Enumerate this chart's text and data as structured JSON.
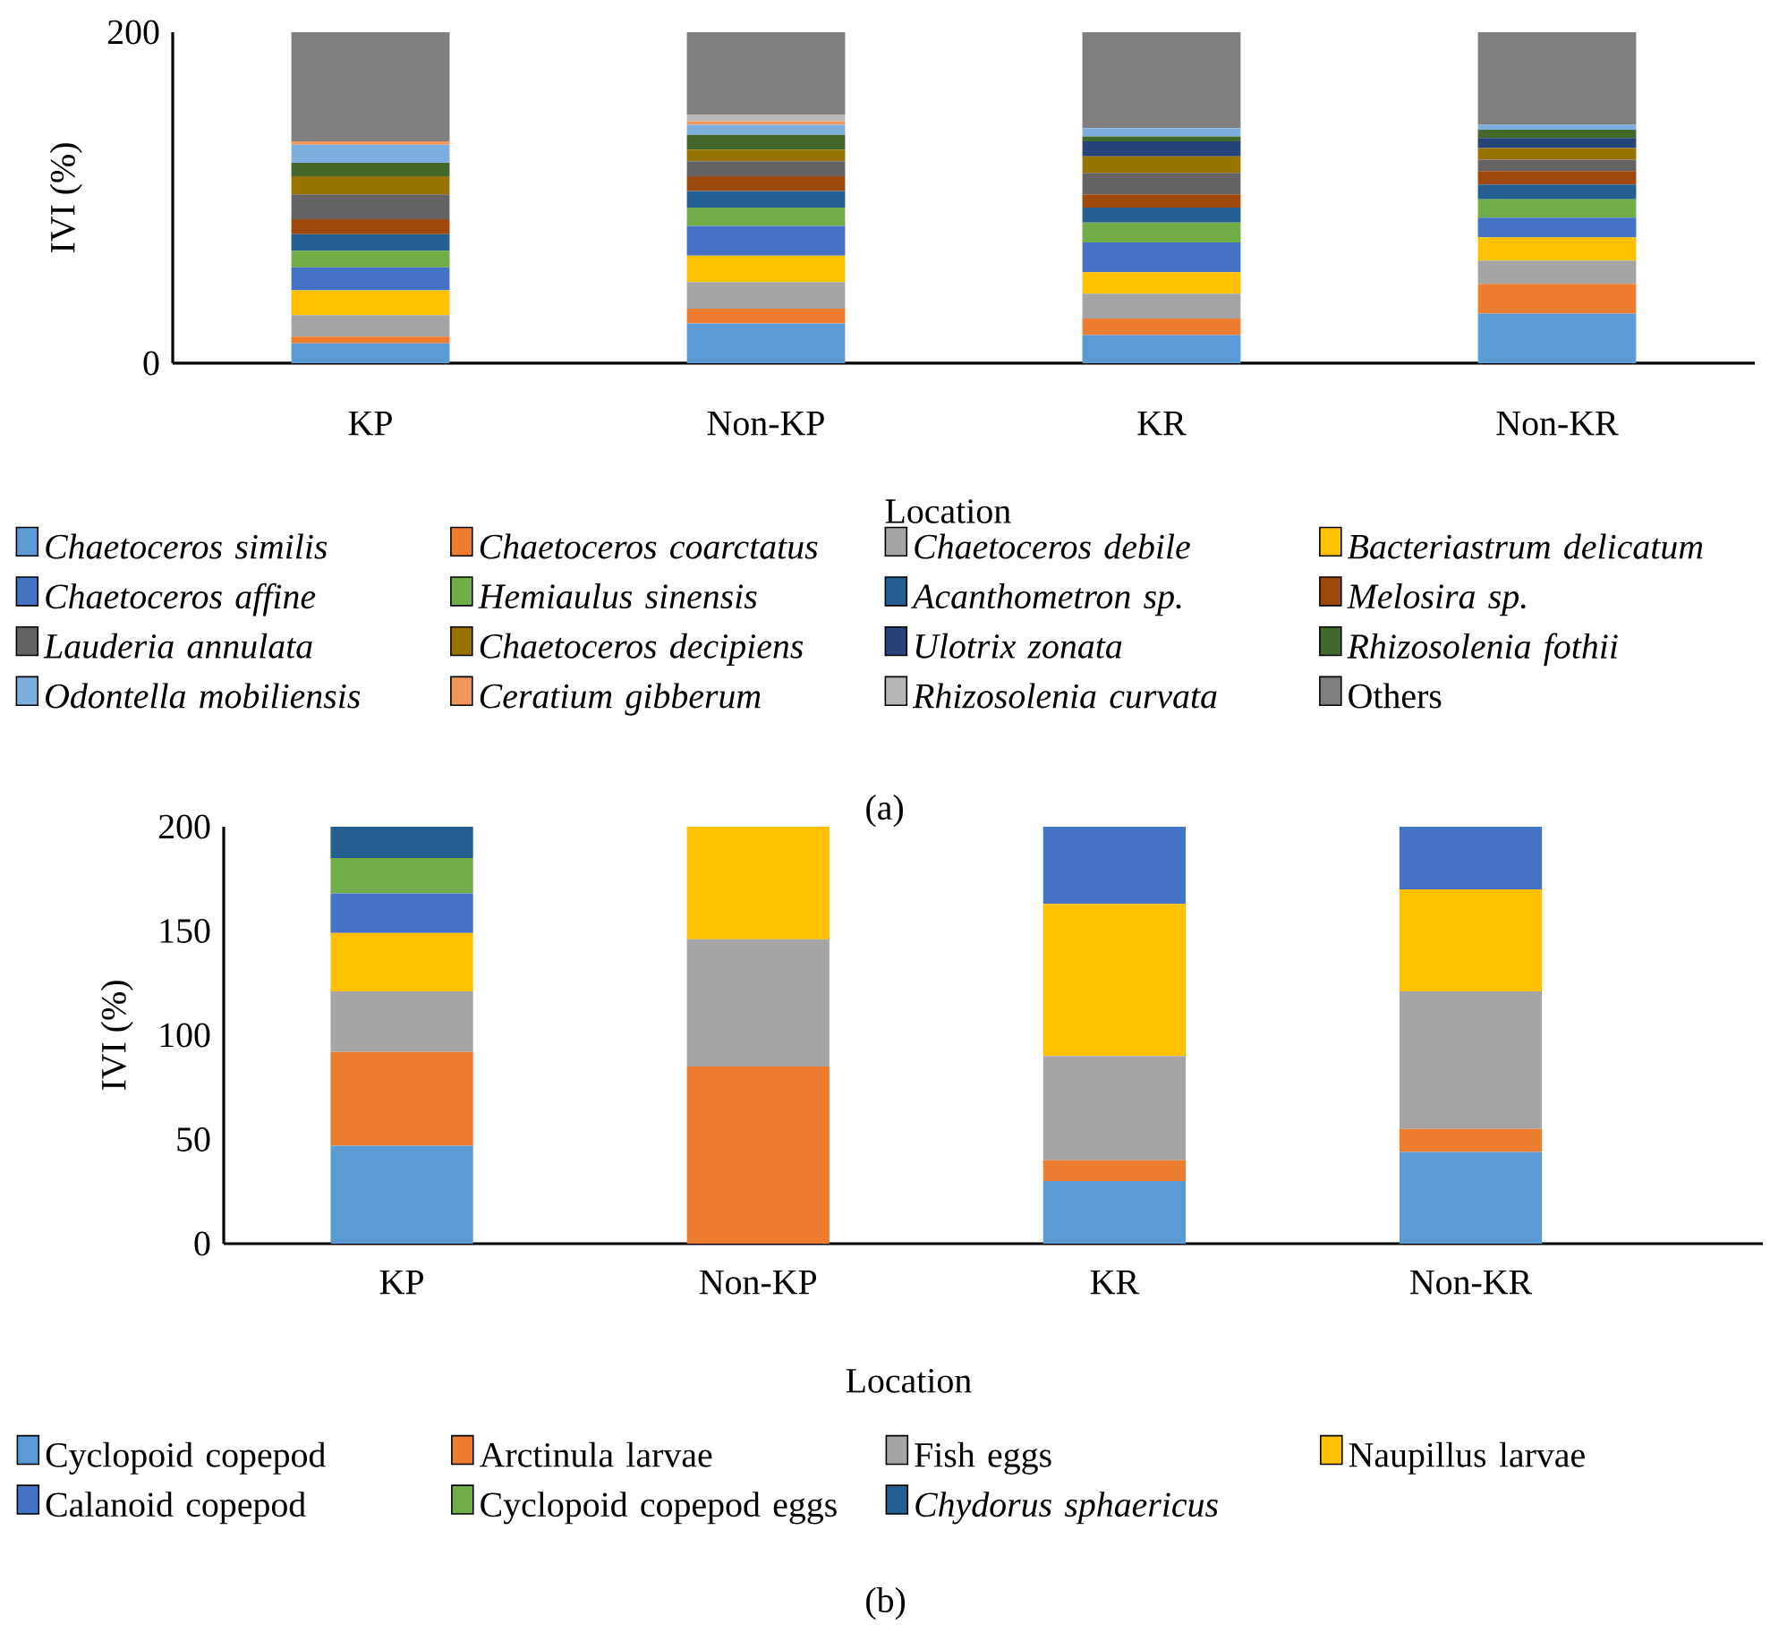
{
  "chart_data": [
    {
      "type": "bar",
      "stacked": true,
      "ylabel": "IVI (%)",
      "xlabel": "Location",
      "categories": [
        "KP",
        "Non-KP",
        "KR",
        "Non-KR"
      ],
      "ylim": [
        0,
        200
      ],
      "yticks": [
        0,
        200
      ],
      "legend": "bottom",
      "annotations": [
        "(a)"
      ],
      "series": [
        {
          "name": "*Chaetoceros similis*",
          "color": "#5b9bd5",
          "values": [
            12,
            24,
            17,
            30
          ]
        },
        {
          "name": "*Chaetoceros coarctatus*",
          "color": "#ed7d31",
          "values": [
            4,
            9,
            10,
            18
          ]
        },
        {
          "name": "*Chaetoceros debile*",
          "color": "#a5a5a5",
          "values": [
            13,
            16,
            15,
            14
          ]
        },
        {
          "name": "*Bacteriastrum delicatum*",
          "color": "#ffc000",
          "values": [
            15,
            16,
            13,
            14
          ]
        },
        {
          "name": "*Chaetoceros affine*",
          "color": "#4472c4",
          "values": [
            14,
            18,
            18,
            12
          ]
        },
        {
          "name": "*Hemiaulus sinensis*",
          "color": "#70ad47",
          "values": [
            10,
            11,
            12,
            11
          ]
        },
        {
          "name": "*Acanthometron sp.*",
          "color": "#255e91",
          "values": [
            10,
            10,
            9,
            9
          ]
        },
        {
          "name": "*Melosira sp.*",
          "color": "#9e480e",
          "values": [
            9,
            9,
            8,
            8
          ]
        },
        {
          "name": "*Lauderia annulata*",
          "color": "#636363",
          "values": [
            15,
            9,
            13,
            7
          ]
        },
        {
          "name": "*Chaetoceros decipiens*",
          "color": "#997300",
          "values": [
            11,
            7,
            10,
            7
          ]
        },
        {
          "name": "*Ulotrix zonata*",
          "color": "#264478",
          "values": [
            0,
            0,
            9,
            6
          ]
        },
        {
          "name": "*Rhizosolenia fothii*",
          "color": "#43682b",
          "values": [
            8,
            9,
            3,
            5
          ]
        },
        {
          "name": "*Odontella mobiliensis*",
          "color": "#7cafdd",
          "values": [
            11,
            6,
            5,
            3
          ]
        },
        {
          "name": "*Ceratium gibberum*",
          "color": "#f1975a",
          "values": [
            2,
            2,
            0,
            0
          ]
        },
        {
          "name": "*Rhizosolenia curvata*",
          "color": "#b7b7b7",
          "values": [
            null,
            4,
            0,
            0
          ]
        },
        {
          "name": "Others",
          "color": "#7f7f7f",
          "values": [
            66,
            50,
            58,
            56
          ]
        }
      ]
    },
    {
      "type": "bar",
      "stacked": true,
      "ylabel": "IVI (%)",
      "xlabel": "Location",
      "categories": [
        "KP",
        "Non-KP",
        "KR",
        "Non-KR"
      ],
      "ylim": [
        0,
        200
      ],
      "yticks": [
        0,
        50,
        100,
        150,
        200
      ],
      "legend": "bottom",
      "annotations": [
        "(b)"
      ],
      "series": [
        {
          "name": "Cyclopoid copepod",
          "color": "#5b9bd5",
          "values": [
            47,
            0,
            30,
            44
          ]
        },
        {
          "name": "Arctinula larvae",
          "color": "#ed7d31",
          "values": [
            45,
            85,
            10,
            11
          ]
        },
        {
          "name": "Fish eggs",
          "color": "#a5a5a5",
          "values": [
            29,
            61,
            50,
            66
          ]
        },
        {
          "name": "Naupillus larvae",
          "color": "#ffc000",
          "values": [
            28,
            54,
            73,
            49
          ]
        },
        {
          "name": "Calanoid copepod",
          "color": "#4472c4",
          "values": [
            19,
            0,
            37,
            30
          ]
        },
        {
          "name": "Cyclopoid copepod eggs",
          "color": "#70ad47",
          "values": [
            17,
            0,
            0,
            0
          ]
        },
        {
          "name": "*Chydorus sphaericus*",
          "color": "#255e91",
          "values": [
            15,
            0,
            0,
            0
          ]
        }
      ]
    }
  ]
}
